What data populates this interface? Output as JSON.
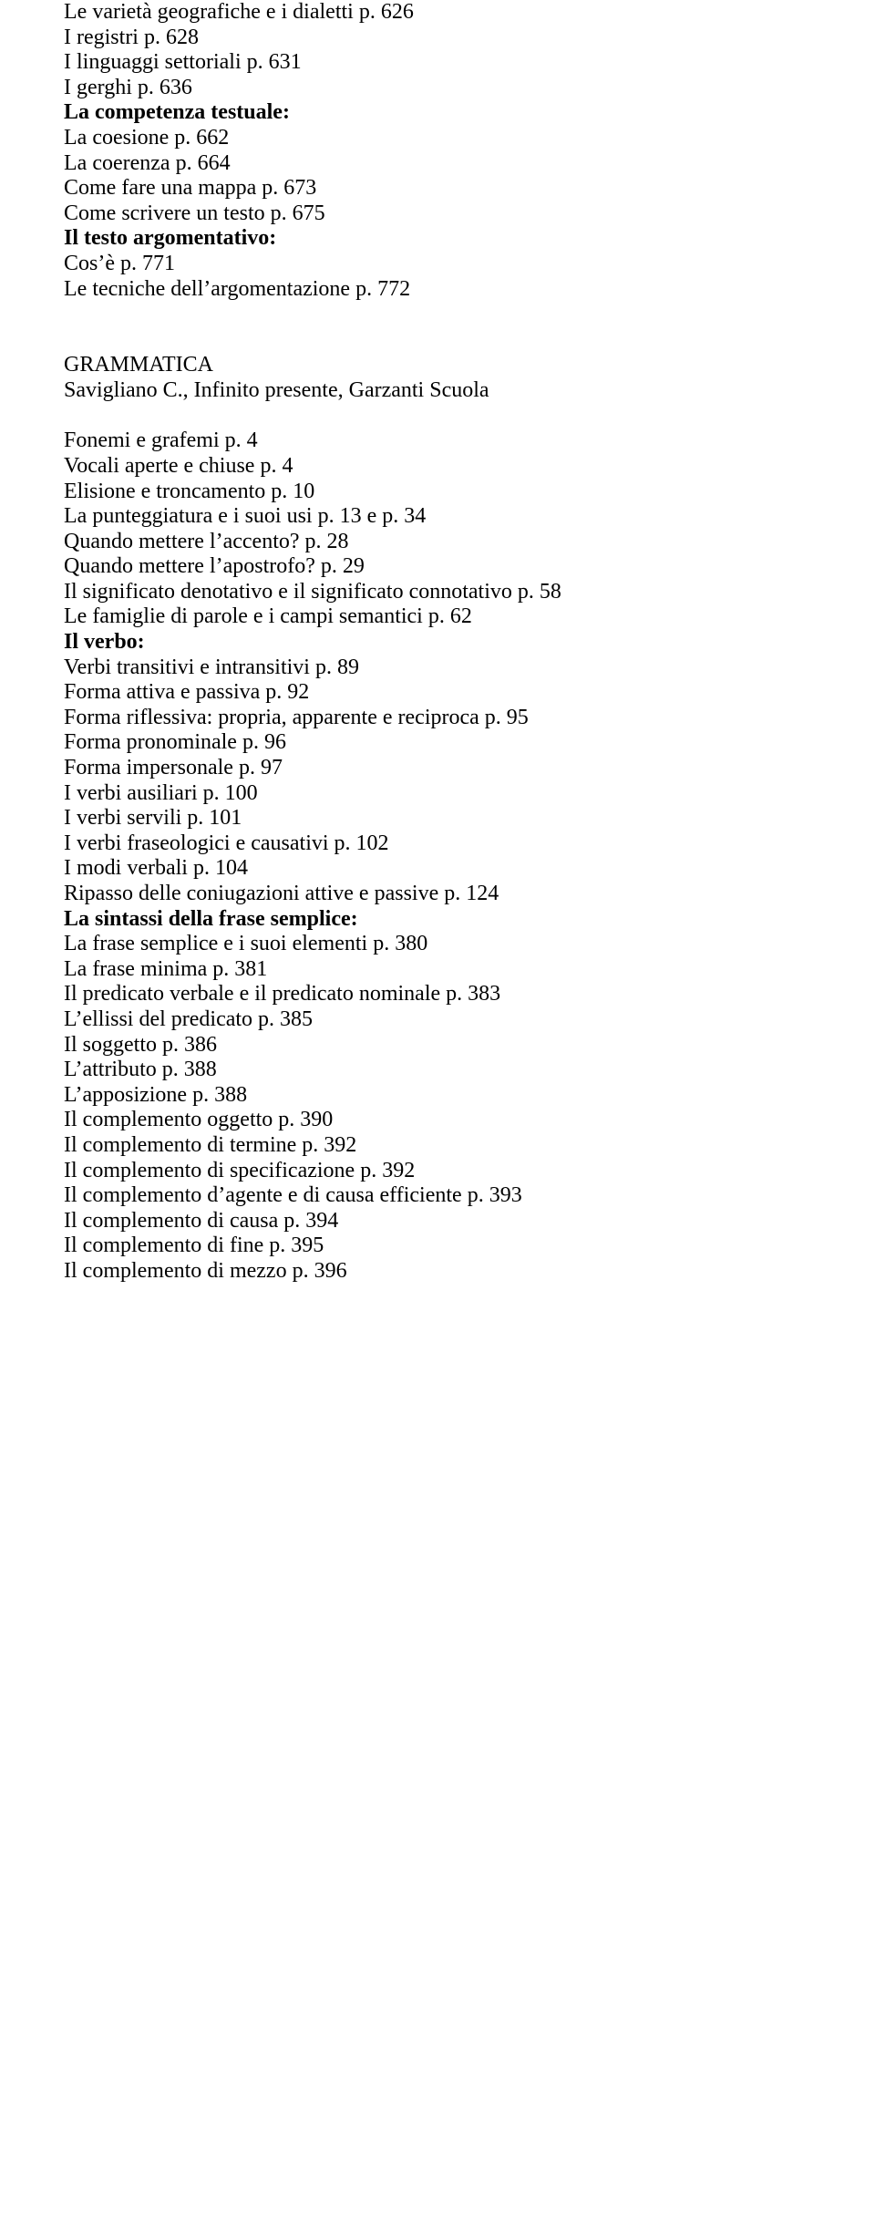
{
  "font": {
    "family": "Times New Roman",
    "size": 24,
    "color": "#000000"
  },
  "background_color": "#ffffff",
  "lines": [
    {
      "text": "Le varietà geografiche e i dialetti p. 626",
      "bold": false
    },
    {
      "text": "I registri p. 628",
      "bold": false
    },
    {
      "text": "I linguaggi settoriali p. 631",
      "bold": false
    },
    {
      "text": "I gerghi p. 636",
      "bold": false
    },
    {
      "text": "La competenza testuale:",
      "bold": true
    },
    {
      "text": "La coesione p. 662",
      "bold": false
    },
    {
      "text": "La coerenza p. 664",
      "bold": false
    },
    {
      "text": "Come fare una mappa p. 673",
      "bold": false
    },
    {
      "text": "Come scrivere un testo p. 675",
      "bold": false
    },
    {
      "text": "Il testo argomentativo:",
      "bold": true
    },
    {
      "text": "Cos’è p. 771",
      "bold": false
    },
    {
      "text": "Le tecniche dell’argomentazione p. 772",
      "bold": false
    },
    {
      "gap": true
    },
    {
      "gap": true
    },
    {
      "text": "GRAMMATICA",
      "bold": false
    },
    {
      "text": "Savigliano C., Infinito presente, Garzanti Scuola",
      "bold": false
    },
    {
      "gap": true
    },
    {
      "text": "Fonemi e grafemi p. 4",
      "bold": false
    },
    {
      "text": "Vocali aperte e chiuse p. 4",
      "bold": false
    },
    {
      "text": "Elisione e troncamento p. 10",
      "bold": false
    },
    {
      "text": "La punteggiatura e i suoi usi p. 13 e p. 34",
      "bold": false
    },
    {
      "text": "Quando mettere l’accento? p. 28",
      "bold": false
    },
    {
      "text": "Quando mettere l’apostrofo? p. 29",
      "bold": false
    },
    {
      "text": "Il significato denotativo e il significato connotativo p. 58",
      "bold": false
    },
    {
      "text": "Le famiglie di parole e i campi semantici p. 62",
      "bold": false
    },
    {
      "text": "Il verbo:",
      "bold": true
    },
    {
      "text": "Verbi transitivi e intransitivi p. 89",
      "bold": false
    },
    {
      "text": "Forma attiva e passiva p. 92",
      "bold": false
    },
    {
      "text": "Forma riflessiva: propria, apparente e reciproca p. 95",
      "bold": false
    },
    {
      "text": "Forma pronominale p. 96",
      "bold": false
    },
    {
      "text": "Forma impersonale p. 97",
      "bold": false
    },
    {
      "text": "I verbi ausiliari p. 100",
      "bold": false
    },
    {
      "text": "I verbi servili p. 101",
      "bold": false
    },
    {
      "text": "I verbi fraseologici e causativi p. 102",
      "bold": false
    },
    {
      "text": "I modi verbali p. 104",
      "bold": false
    },
    {
      "text": "Ripasso delle coniugazioni attive e passive p. 124",
      "bold": false
    },
    {
      "text": "La sintassi della frase semplice:",
      "bold": true
    },
    {
      "text": "La frase semplice e i suoi elementi p. 380",
      "bold": false
    },
    {
      "text": "La frase minima p. 381",
      "bold": false
    },
    {
      "text": "Il predicato verbale e il predicato nominale p. 383",
      "bold": false
    },
    {
      "text": "L’ellissi del predicato p. 385",
      "bold": false
    },
    {
      "text": "Il soggetto p. 386",
      "bold": false
    },
    {
      "text": "L’attributo p. 388",
      "bold": false
    },
    {
      "text": "L’apposizione p. 388",
      "bold": false
    },
    {
      "text": "Il complemento oggetto p. 390",
      "bold": false
    },
    {
      "text": "Il complemento di termine p. 392",
      "bold": false
    },
    {
      "text": "Il complemento di specificazione p. 392",
      "bold": false
    },
    {
      "text": "Il complemento d’agente e di causa efficiente p. 393",
      "bold": false
    },
    {
      "text": "Il complemento di causa p. 394",
      "bold": false
    },
    {
      "text": "Il complemento di fine p. 395",
      "bold": false
    },
    {
      "text": "Il complemento di mezzo p. 396",
      "bold": false
    }
  ]
}
